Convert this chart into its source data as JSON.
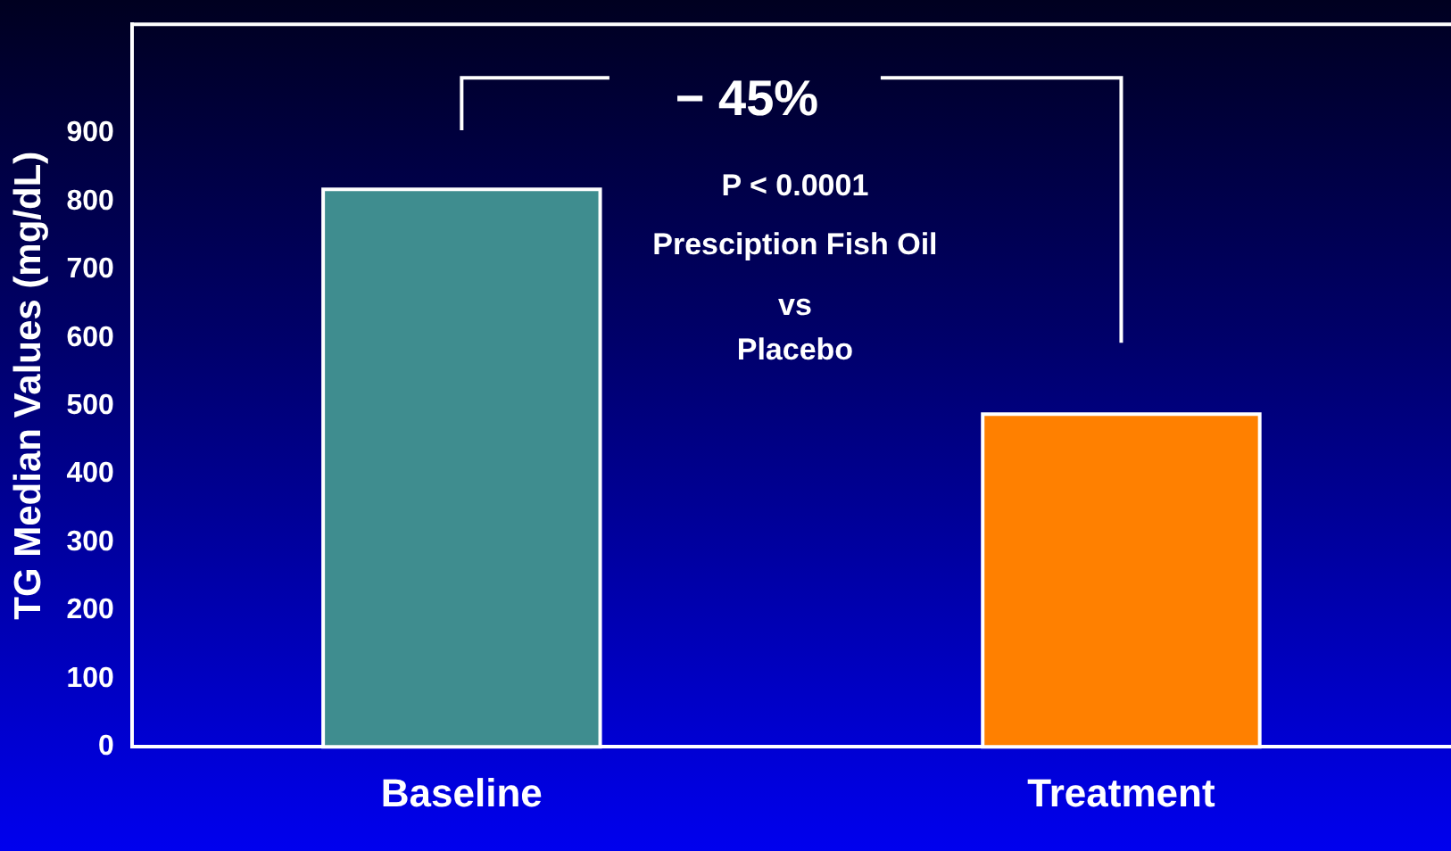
{
  "chart_data": {
    "type": "bar",
    "ylabel": "TG Median Values (mg/dL)",
    "categories": [
      "Baseline",
      "Treatment"
    ],
    "colors": [
      "#3f8d8f",
      "#ff8000"
    ],
    "values": [
      818,
      488
    ],
    "ylim": [
      0,
      1060
    ],
    "yticks": [
      0,
      100,
      200,
      300,
      400,
      500,
      600,
      700,
      800,
      900
    ],
    "grid": false,
    "legend": false,
    "annotations": [
      "− 45%",
      "P < 0.0001",
      "Presciption Fish Oil",
      "vs",
      "Placebo"
    ]
  }
}
